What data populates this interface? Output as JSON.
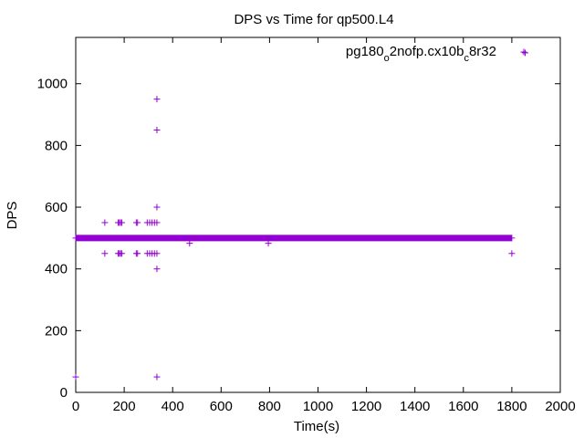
{
  "chart_data": {
    "type": "scatter",
    "title": "DPS vs Time for qp500.L4",
    "xlabel": "Time(s)",
    "ylabel": "DPS",
    "xlim": [
      0,
      2000
    ],
    "ylim": [
      0,
      1150
    ],
    "xticks": [
      0,
      200,
      400,
      600,
      800,
      1000,
      1200,
      1400,
      1600,
      1800,
      2000
    ],
    "yticks": [
      0,
      200,
      400,
      600,
      800,
      1000
    ],
    "grid": false,
    "legend_position": "top-right",
    "series": [
      {
        "name_parts": [
          "pg180",
          "o",
          "2nofp.cx10b",
          "c",
          "8r32"
        ],
        "color": "#9400d3",
        "marker": "plus",
        "dense_band": {
          "x_start": 0,
          "x_end": 1800,
          "y": 500
        },
        "points": [
          [
            0,
            50
          ],
          [
            0,
            500
          ],
          [
            1800,
            500
          ],
          [
            1800,
            450
          ],
          [
            1855,
            1100
          ],
          [
            120,
            550
          ],
          [
            120,
            450
          ],
          [
            175,
            550
          ],
          [
            180,
            550
          ],
          [
            185,
            550
          ],
          [
            190,
            550
          ],
          [
            175,
            450
          ],
          [
            180,
            450
          ],
          [
            185,
            450
          ],
          [
            190,
            450
          ],
          [
            250,
            550
          ],
          [
            255,
            550
          ],
          [
            250,
            450
          ],
          [
            255,
            450
          ],
          [
            295,
            550
          ],
          [
            305,
            550
          ],
          [
            315,
            550
          ],
          [
            325,
            550
          ],
          [
            295,
            450
          ],
          [
            305,
            450
          ],
          [
            315,
            450
          ],
          [
            325,
            450
          ],
          [
            335,
            950
          ],
          [
            335,
            850
          ],
          [
            335,
            600
          ],
          [
            335,
            550
          ],
          [
            335,
            450
          ],
          [
            335,
            400
          ],
          [
            335,
            50
          ],
          [
            470,
            483
          ],
          [
            795,
            483
          ]
        ]
      }
    ]
  }
}
